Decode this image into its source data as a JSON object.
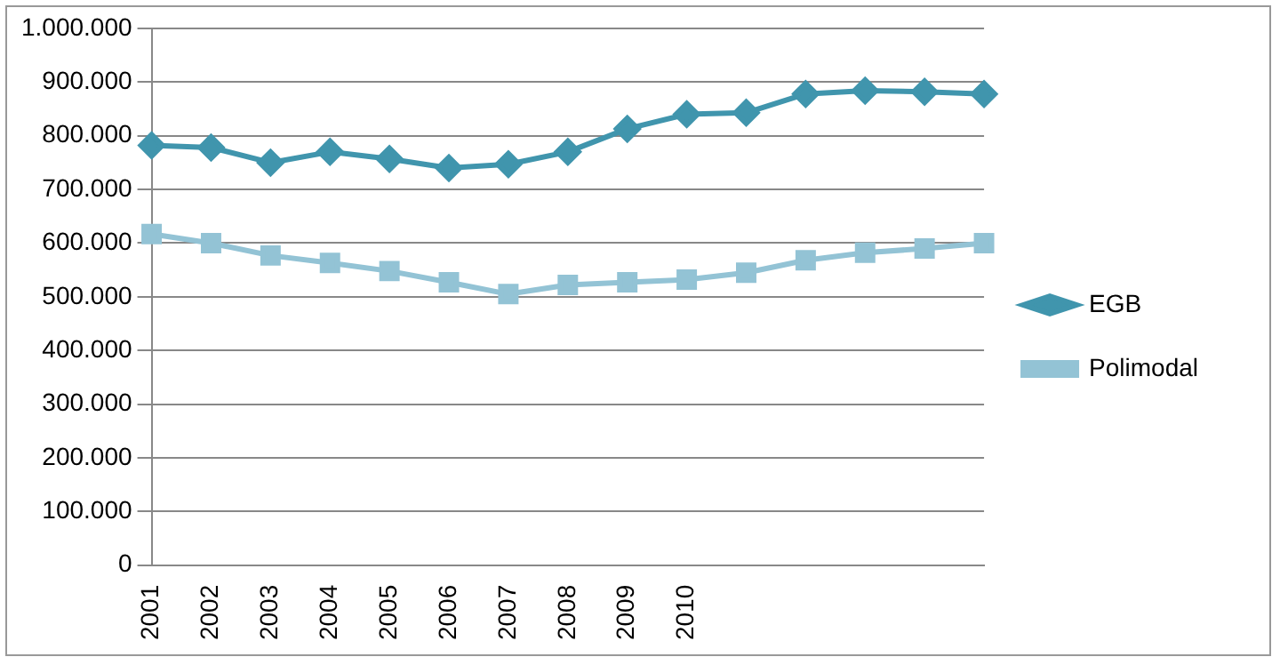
{
  "chart_data": {
    "type": "line",
    "categories": [
      "2001",
      "2002",
      "2003",
      "2004",
      "2005",
      "2006",
      "2007",
      "2008",
      "2009",
      "2010",
      null,
      null,
      null,
      null,
      null
    ],
    "series": [
      {
        "name": "EGB",
        "color": "#4095ad",
        "marker": "diamond",
        "values": [
          782000,
          778000,
          750000,
          770000,
          757000,
          740000,
          747000,
          770000,
          813000,
          840000,
          843000,
          878000,
          884000,
          882000,
          878000
        ]
      },
      {
        "name": "Polimodal",
        "color": "#93c3d5",
        "marker": "square",
        "values": [
          617000,
          600000,
          577000,
          563000,
          548000,
          527000,
          505000,
          522000,
          527000,
          532000,
          545000,
          568000,
          582000,
          590000,
          600000
        ]
      }
    ],
    "ylim": [
      0,
      1000000
    ],
    "yticks": [
      0,
      {
        "value": 100000,
        "label": "100.000"
      },
      {
        "value": 200000,
        "label": "200.000"
      },
      {
        "value": 300000,
        "label": "300.000"
      },
      {
        "value": 400000,
        "label": "400.000"
      },
      {
        "value": 500000,
        "label": "500.000"
      },
      {
        "value": 600000,
        "label": "600.000"
      },
      {
        "value": 700000,
        "label": "700.000"
      },
      {
        "value": 800000,
        "label": "800.000"
      },
      {
        "value": 900000,
        "label": "900.000"
      },
      {
        "value": 1000000,
        "label": "1.000.000"
      }
    ],
    "grid": "y",
    "legend": "right"
  }
}
